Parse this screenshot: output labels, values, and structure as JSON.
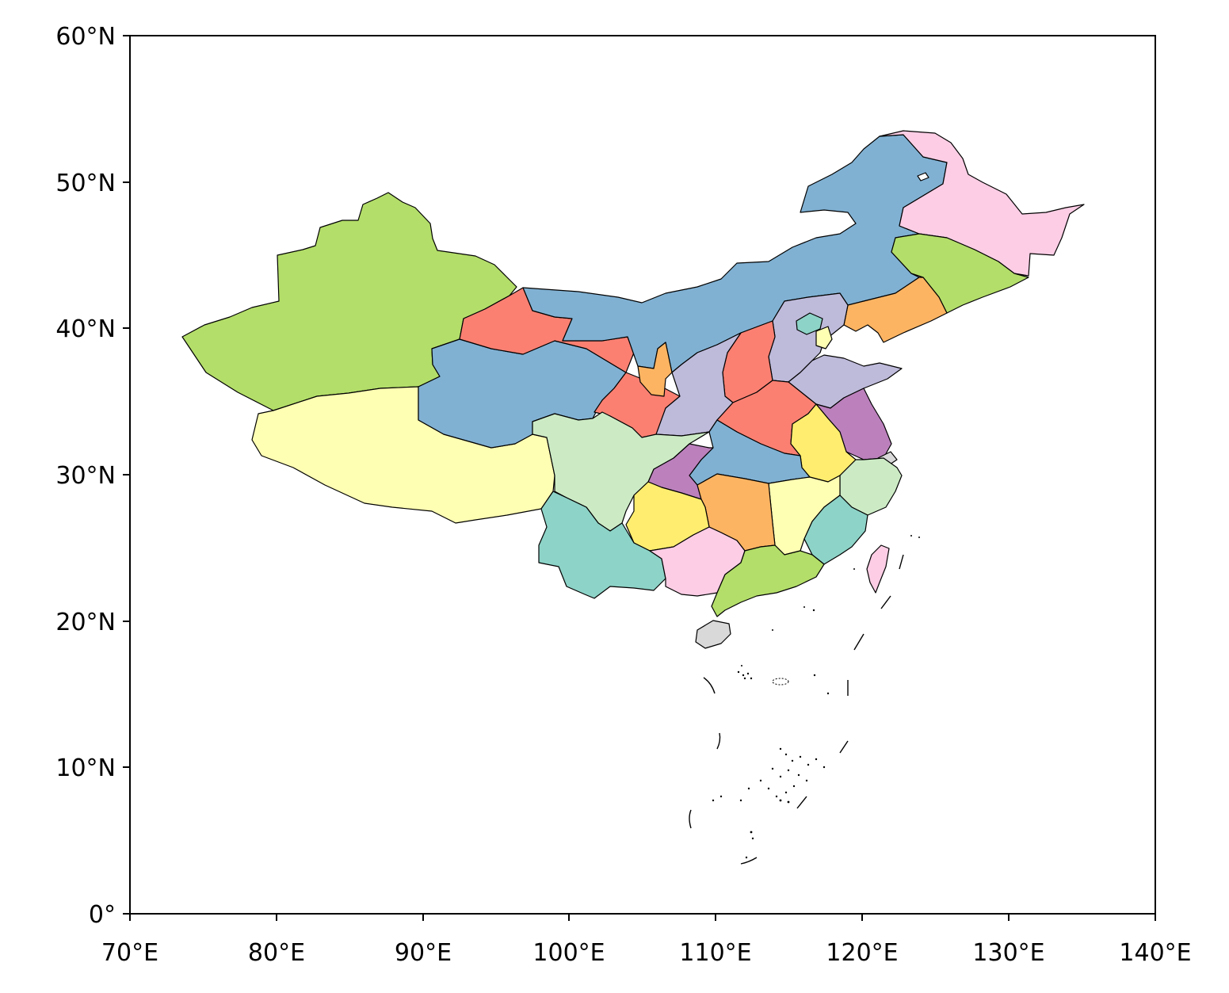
{
  "map": {
    "x_ticks": [
      "70°E",
      "80°E",
      "90°E",
      "100°E",
      "110°E",
      "120°E",
      "130°E",
      "140°E"
    ],
    "y_ticks": [
      "0°",
      "10°N",
      "20°N",
      "30°N",
      "40°N",
      "50°N",
      "60°N"
    ],
    "x_range_deg": [
      70,
      140
    ],
    "y_range_deg": [
      0,
      60
    ],
    "region_colors": {
      "set3_green": "#b3de69",
      "set3_blue": "#80b1d3",
      "set3_pink": "#fccde5",
      "set3_orange": "#fdb462",
      "set3_red": "#fb8072",
      "set3_lavender": "#bebada",
      "set3_yellow_pale": "#ffffb3",
      "set3_teal": "#8dd3c7",
      "set3_mint": "#ccebc5",
      "set3_purple": "#bc80bd",
      "set3_yellow": "#ffed6f",
      "set3_grey": "#d9d9d9"
    }
  }
}
